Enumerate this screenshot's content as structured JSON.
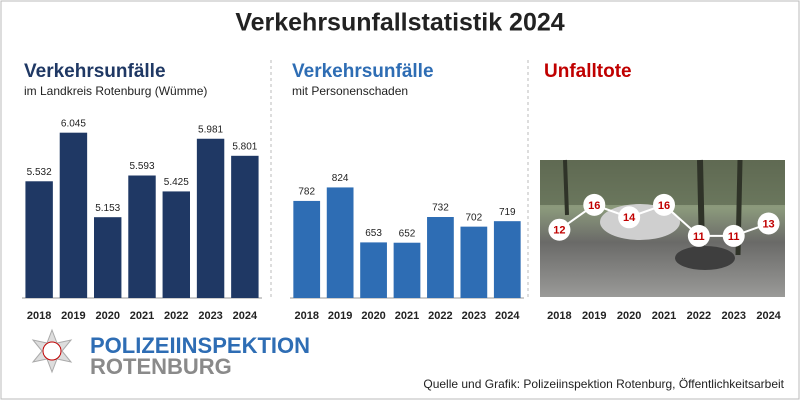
{
  "title": "Verkehrsunfallstatistik 2024",
  "chart_data": [
    {
      "type": "bar",
      "title": "Verkehrsunfälle",
      "subtitle": "im Landkreis Rotenburg (Wümme)",
      "categories": [
        "2018",
        "2019",
        "2020",
        "2021",
        "2022",
        "2023",
        "2024"
      ],
      "values": [
        5532,
        6045,
        5153,
        5593,
        5425,
        5981,
        5801
      ],
      "value_labels": [
        "5.532",
        "6.045",
        "5.153",
        "5.593",
        "5.425",
        "5.981",
        "5.801"
      ],
      "color": "#1f3864",
      "ylim": [
        4300,
        6200
      ]
    },
    {
      "type": "bar",
      "title": "Verkehrsunfälle",
      "subtitle": "mit Personenschaden",
      "categories": [
        "2018",
        "2019",
        "2020",
        "2021",
        "2022",
        "2023",
        "2024"
      ],
      "values": [
        782,
        824,
        653,
        652,
        732,
        702,
        719
      ],
      "color": "#2e6db4",
      "ylim": [
        480,
        1040
      ]
    },
    {
      "type": "line",
      "title": "Unfalltote",
      "categories": [
        "2018",
        "2019",
        "2020",
        "2021",
        "2022",
        "2023",
        "2024"
      ],
      "values": [
        12,
        16,
        14,
        16,
        11,
        11,
        13
      ],
      "color": "#c00000",
      "ylim": [
        1,
        30
      ]
    }
  ],
  "logo": {
    "line1": "POLIZEIINSPEKTION",
    "line2": "ROTENBURG"
  },
  "source": "Quelle und Grafik: Polizeiinspektion Rotenburg, Öffentlichkeitsarbeit"
}
